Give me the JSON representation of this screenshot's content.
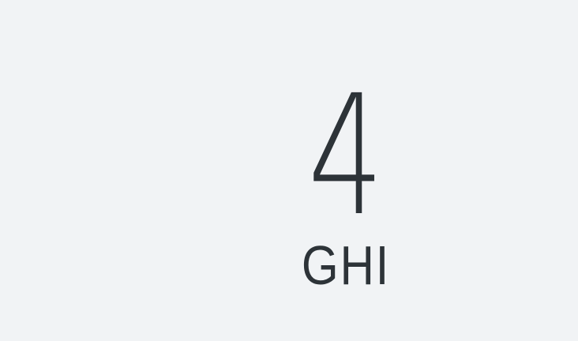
{
  "key": {
    "digit": "4",
    "letters": "GHI"
  },
  "colors": {
    "background": "#f1f3f5",
    "text": "#2d3338"
  }
}
